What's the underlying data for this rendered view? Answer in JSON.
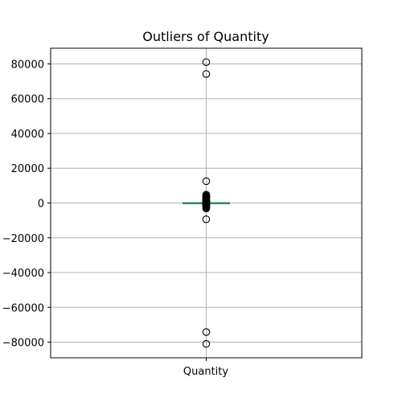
{
  "chart_data": {
    "type": "boxplot",
    "title": "Outliers of Quantity",
    "xlabel": "",
    "ylabel": "",
    "categories": [
      "Quantity"
    ],
    "ylim": [
      -89000,
      89000
    ],
    "yticks": [
      -80000,
      -60000,
      -40000,
      -20000,
      0,
      20000,
      40000,
      60000,
      80000
    ],
    "grid": true,
    "box": {
      "q1": 1,
      "median": 3,
      "q3": 10,
      "whisker_low": -12,
      "whisker_high": 23
    },
    "outliers": [
      80995,
      74215,
      12540,
      4800,
      4300,
      3906,
      3600,
      3186,
      2880,
      2600,
      2400,
      2100,
      1930,
      1600,
      1440,
      1200,
      1000,
      800,
      600,
      500,
      400,
      300,
      200,
      -200,
      -400,
      -600,
      -800,
      -1000,
      -1200,
      -1500,
      -1930,
      -2400,
      -2880,
      -3100,
      -9360,
      -74215,
      -80995
    ],
    "colors": {
      "box": "#1f77b4",
      "median": "#2ca02c",
      "grid": "#b0b0b0",
      "marker_edge": "#000000"
    }
  }
}
